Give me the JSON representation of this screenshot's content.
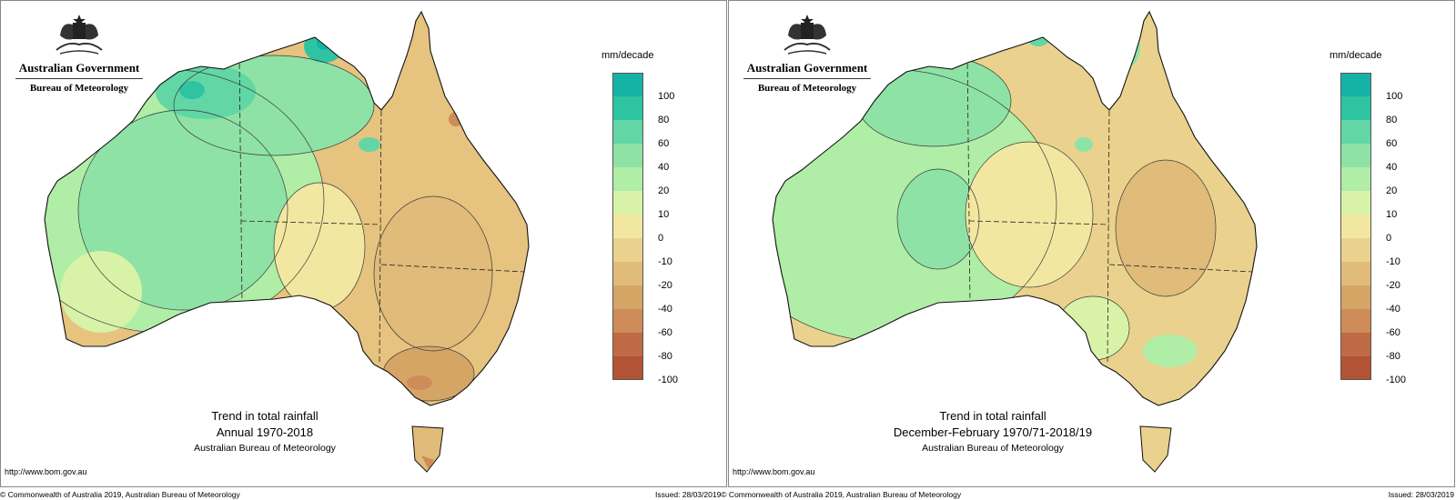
{
  "colors": {
    "legend": [
      "#15b3a6",
      "#2ec4a2",
      "#62d6a5",
      "#8ee2a6",
      "#b0eda6",
      "#d8f2a8",
      "#f2e7a0",
      "#ead28e",
      "#e0bb79",
      "#d5a566",
      "#cd8c58",
      "#c06a45",
      "#b15334"
    ],
    "coast": "#111111",
    "contour": "#3a3a3a"
  },
  "legend": {
    "unit": "mm/decade",
    "ticks": [
      "100",
      "80",
      "60",
      "40",
      "20",
      "10",
      "0",
      "-10",
      "-20",
      "-40",
      "-60",
      "-80",
      "-100"
    ]
  },
  "panels": [
    {
      "gov_name": "Australian Government",
      "bureau": "Bureau of Meteorology",
      "title_1": "Trend in total rainfall",
      "title_2": "Annual 1970-2018",
      "title_3": "Australian Bureau of Meteorology",
      "url": "http://www.bom.gov.au"
    },
    {
      "gov_name": "Australian Government",
      "bureau": "Bureau of Meteorology",
      "title_1": "Trend in total rainfall",
      "title_2": "December-February 1970/71-2018/19",
      "title_3": "Australian Bureau of Meteorology",
      "url": "http://www.bom.gov.au"
    }
  ],
  "footer": {
    "left_copyright": "© Commonwealth of Australia 2019, Australian Bureau of Meteorology",
    "middle": "Issued: 28/03/2019© Commonwealth of Australia 2019, Australian Bureau of Meteorology",
    "right_issued": "Issued: 28/03/2019"
  }
}
